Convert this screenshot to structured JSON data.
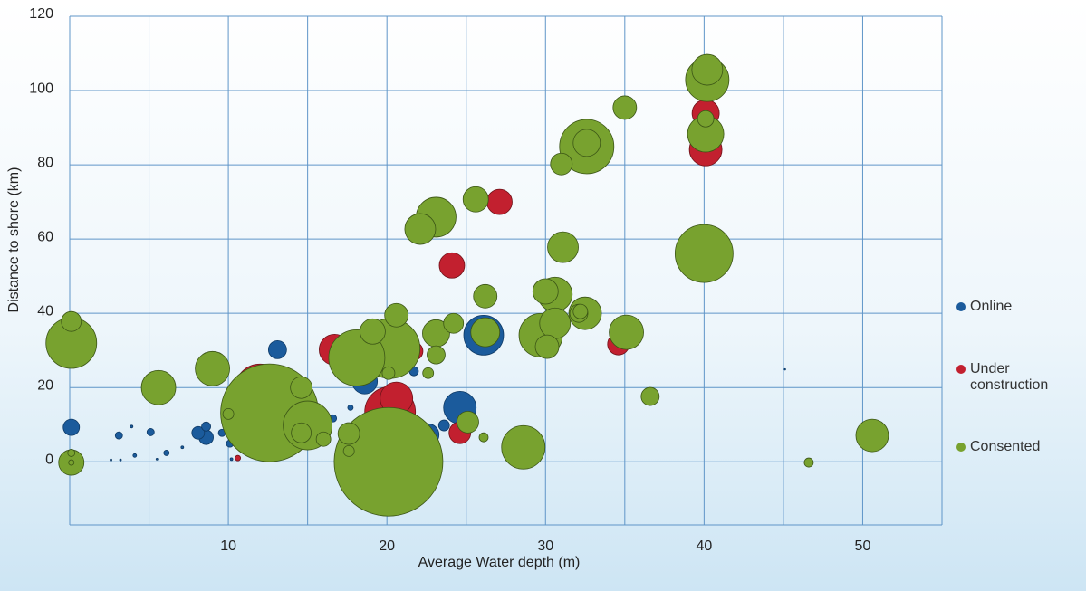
{
  "chart_data": {
    "type": "bubble",
    "x_label": "Average Water depth (m)",
    "y_label": "Distance to shore (km)",
    "xlim": [
      0,
      55
    ],
    "ylim": [
      -17,
      120
    ],
    "xticks": [
      10,
      20,
      30,
      40,
      50
    ],
    "xgrid": [
      0,
      5,
      10,
      15,
      20,
      25,
      30,
      35,
      40,
      45,
      50,
      55
    ],
    "yticks": [
      0,
      20,
      40,
      60,
      80,
      100,
      120
    ],
    "grid": true,
    "series": [
      {
        "name": "Online",
        "color": "#1b5b9c",
        "x": [
          0.1,
          3.1,
          5.1,
          6.1,
          8.1,
          8.6,
          8.6,
          9.6,
          10.1,
          13.1,
          18.6,
          17.7,
          16.6,
          22.6,
          23.6,
          24.6,
          26.1,
          21.7,
          3.9,
          4.1,
          2.6,
          3.2,
          5.5,
          7.1,
          10.2,
          45.1
        ],
        "y": [
          9.3,
          7.1,
          8,
          2.4,
          7.8,
          6.6,
          9.5,
          7.8,
          4.9,
          30.2,
          21.7,
          14.6,
          11.7,
          7.3,
          9.8,
          14.6,
          34.1,
          24.4,
          9.5,
          1.7,
          0.5,
          0.5,
          0.7,
          3.9,
          0.7,
          24.9
        ],
        "sizes": [
          9,
          4,
          4,
          3,
          7,
          8,
          5,
          4,
          4,
          10,
          14,
          3,
          4,
          12,
          6,
          18,
          22,
          5,
          1.5,
          2,
          1,
          1,
          1,
          1.5,
          1.5,
          0.8
        ]
      },
      {
        "name": "Under construction",
        "color": "#c2202f",
        "x": [
          12,
          16.7,
          20.2,
          20.6,
          21.7,
          24.6,
          24.1,
          27.1,
          34.6,
          40.1,
          40.1,
          10.6
        ],
        "y": [
          19.5,
          30.2,
          13.4,
          17.1,
          29.8,
          7.8,
          52.9,
          70,
          31.7,
          93.9,
          84.1,
          1
        ],
        "sizes": [
          28,
          17,
          28,
          18,
          10,
          12,
          14,
          14,
          12,
          15,
          18,
          3
        ]
      },
      {
        "name": "Consented",
        "color": "#78a22f",
        "x": [
          0.1,
          0.1,
          0.1,
          0.1,
          0.1,
          5.6,
          9,
          12.6,
          10,
          14.6,
          15,
          14.6,
          16,
          17.6,
          17.6,
          18.1,
          19.1,
          20.6,
          20.2,
          20.1,
          20.1,
          22.6,
          23.1,
          23.1,
          24.2,
          22.1,
          23.1,
          25.6,
          26.2,
          26.2,
          25.1,
          26.1,
          28.6,
          29.7,
          30.1,
          30,
          30.6,
          30.6,
          31.1,
          31,
          32.5,
          32.1,
          32.2,
          32.6,
          32.6,
          35,
          35.1,
          36.6,
          40.2,
          40.2,
          40.1,
          40.1,
          40,
          46.6,
          50.6
        ],
        "y": [
          32,
          37.8,
          -0.2,
          2.4,
          -0.2,
          20,
          25.1,
          13.2,
          12.9,
          20,
          9.8,
          7.8,
          6.1,
          7.6,
          2.9,
          28,
          35.1,
          39.5,
          30.5,
          23.9,
          0,
          23.9,
          28.8,
          34.6,
          37.3,
          62.7,
          65.9,
          70.7,
          44.6,
          34.9,
          10.7,
          6.6,
          3.9,
          34.1,
          31,
          45.9,
          45.1,
          37.3,
          57.8,
          80.2,
          40,
          40,
          40.5,
          84.9,
          85.9,
          95.4,
          34.9,
          17.6,
          102.9,
          105.6,
          92.4,
          88.3,
          56.1,
          -0.2,
          7.1
        ],
        "sizes": [
          28,
          11,
          14,
          4,
          3,
          19,
          19,
          54,
          6,
          12,
          27,
          11,
          8,
          12,
          6,
          31,
          14,
          13,
          33,
          7,
          60,
          6,
          10,
          15,
          11,
          17,
          22,
          14,
          13,
          16,
          12,
          5,
          24,
          24,
          13,
          14,
          19,
          17,
          17,
          12,
          18,
          10,
          8,
          30,
          15,
          13,
          19,
          10,
          24,
          17,
          9,
          20,
          32,
          5,
          18
        ]
      }
    ]
  }
}
